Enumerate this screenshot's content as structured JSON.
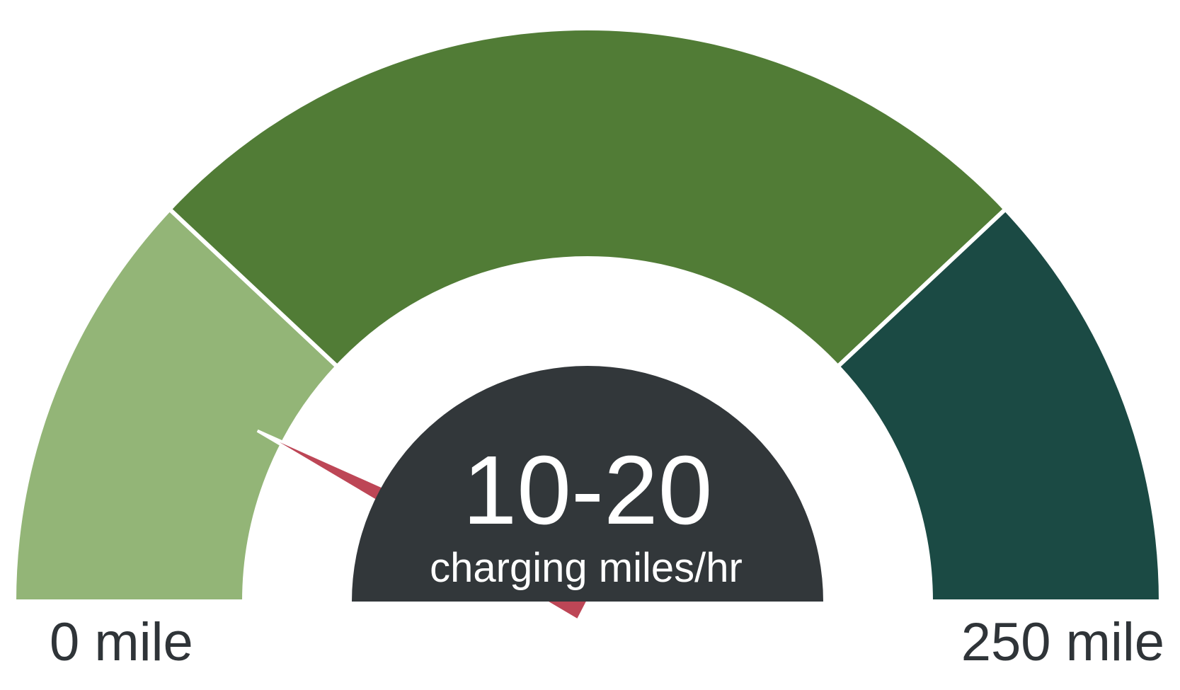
{
  "chart_data": {
    "type": "gauge",
    "title": "",
    "min": 0,
    "max": 250,
    "min_label": "0 mile",
    "max_label": "250 mile",
    "bands": [
      {
        "from": 0,
        "to": 60,
        "color": "#93b577"
      },
      {
        "from": 60,
        "to": 190,
        "color": "#517c36"
      },
      {
        "from": 190,
        "to": 250,
        "color": "#1b4a44"
      }
    ],
    "needle_value": 38,
    "needle_color": "#bd4656",
    "readout": {
      "value": "10-20",
      "unit": "charging miles/hr",
      "background": "#32373a"
    }
  }
}
